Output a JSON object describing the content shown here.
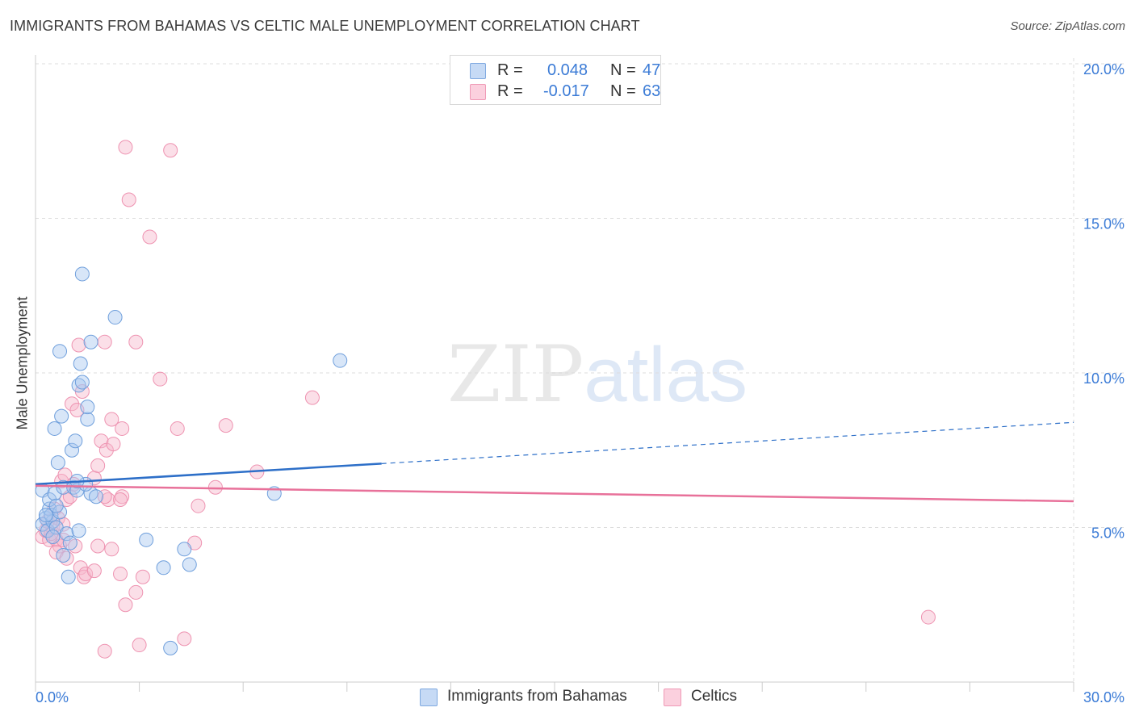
{
  "title": "IMMIGRANTS FROM BAHAMAS VS CELTIC MALE UNEMPLOYMENT CORRELATION CHART",
  "source": "Source: ZipAtlas.com",
  "watermark": {
    "zip": "ZIP",
    "atlas": "atlas"
  },
  "legend_top": {
    "blue": {
      "r_label": "R =",
      "r_value": "0.048",
      "n_label": "N =",
      "n_value": "47"
    },
    "pink": {
      "r_label": "R =",
      "r_value": "-0.017",
      "n_label": "N =",
      "n_value": "63"
    }
  },
  "colors": {
    "blue_fill": "#a9c8f0",
    "blue_stroke": "#6f9fdc",
    "blue_line": "#2d6fc8",
    "pink_fill": "#f6b9cd",
    "pink_stroke": "#ee93b1",
    "pink_line": "#e8719a",
    "grid": "#dddddd",
    "axis_text": "#3b7bd6"
  },
  "chart_data": {
    "type": "scatter",
    "title": "IMMIGRANTS FROM BAHAMAS VS CELTIC MALE UNEMPLOYMENT CORRELATION CHART",
    "xlabel": "",
    "ylabel": "Male Unemployment",
    "xlim": [
      0,
      30
    ],
    "ylim": [
      0,
      20
    ],
    "x_tick_labels": [
      {
        "value": 0,
        "label": "0.0%"
      },
      {
        "value": 30,
        "label": "30.0%"
      }
    ],
    "y_tick_labels": [
      {
        "value": 5,
        "label": "5.0%"
      },
      {
        "value": 10,
        "label": "10.0%"
      },
      {
        "value": 15,
        "label": "15.0%"
      },
      {
        "value": 20,
        "label": "20.0%"
      }
    ],
    "legend": [
      "Immigrants from Bahamas",
      "Celtics"
    ],
    "series": [
      {
        "name": "Immigrants from Bahamas",
        "color": "blue",
        "points": [
          [
            0.2,
            6.2
          ],
          [
            0.3,
            5.3
          ],
          [
            0.2,
            5.1
          ],
          [
            0.4,
            5.6
          ],
          [
            0.35,
            4.9
          ],
          [
            0.5,
            5.2
          ],
          [
            0.45,
            5.4
          ],
          [
            0.6,
            5.0
          ],
          [
            0.7,
            5.5
          ],
          [
            0.4,
            5.9
          ],
          [
            0.55,
            6.1
          ],
          [
            0.6,
            5.7
          ],
          [
            0.8,
            6.3
          ],
          [
            0.9,
            4.8
          ],
          [
            1.0,
            4.5
          ],
          [
            0.8,
            4.1
          ],
          [
            1.1,
            6.3
          ],
          [
            1.2,
            6.2
          ],
          [
            1.25,
            4.9
          ],
          [
            1.05,
            7.5
          ],
          [
            1.15,
            7.8
          ],
          [
            0.75,
            8.6
          ],
          [
            0.65,
            7.1
          ],
          [
            0.55,
            8.2
          ],
          [
            1.25,
            9.6
          ],
          [
            1.35,
            9.7
          ],
          [
            1.5,
            8.5
          ],
          [
            1.5,
            8.9
          ],
          [
            1.3,
            10.3
          ],
          [
            0.7,
            10.7
          ],
          [
            1.6,
            11.0
          ],
          [
            2.3,
            11.8
          ],
          [
            1.35,
            13.2
          ],
          [
            1.6,
            6.1
          ],
          [
            1.75,
            6.0
          ],
          [
            1.45,
            6.4
          ],
          [
            1.2,
            6.5
          ],
          [
            0.95,
            3.4
          ],
          [
            3.2,
            4.6
          ],
          [
            3.7,
            3.7
          ],
          [
            4.3,
            4.3
          ],
          [
            4.45,
            3.8
          ],
          [
            3.9,
            1.1
          ],
          [
            6.9,
            6.1
          ],
          [
            8.8,
            10.4
          ],
          [
            0.3,
            5.4
          ],
          [
            0.5,
            4.7
          ]
        ],
        "trend": {
          "x0": 0,
          "y0": 6.4,
          "x1": 30,
          "y1": 8.4,
          "solid_until": 10
        }
      },
      {
        "name": "Celtics",
        "color": "pink",
        "points": [
          [
            0.2,
            4.7
          ],
          [
            0.3,
            4.9
          ],
          [
            0.4,
            4.6
          ],
          [
            0.5,
            5.0
          ],
          [
            0.6,
            4.6
          ],
          [
            0.7,
            4.4
          ],
          [
            0.35,
            5.2
          ],
          [
            0.45,
            4.8
          ],
          [
            0.55,
            5.6
          ],
          [
            0.65,
            5.3
          ],
          [
            0.8,
            5.1
          ],
          [
            0.9,
            5.9
          ],
          [
            1.0,
            6.0
          ],
          [
            0.75,
            6.5
          ],
          [
            0.85,
            6.7
          ],
          [
            1.1,
            6.4
          ],
          [
            0.6,
            4.2
          ],
          [
            0.9,
            4.0
          ],
          [
            1.15,
            4.4
          ],
          [
            0.8,
            4.6
          ],
          [
            1.3,
            3.7
          ],
          [
            1.4,
            3.4
          ],
          [
            1.45,
            3.5
          ],
          [
            1.7,
            3.6
          ],
          [
            1.8,
            4.4
          ],
          [
            2.2,
            4.3
          ],
          [
            1.7,
            6.6
          ],
          [
            2.1,
            5.9
          ],
          [
            2.0,
            6.0
          ],
          [
            2.5,
            6.0
          ],
          [
            2.45,
            5.9
          ],
          [
            1.8,
            7.0
          ],
          [
            1.9,
            7.8
          ],
          [
            2.05,
            7.5
          ],
          [
            2.25,
            7.7
          ],
          [
            1.05,
            9.0
          ],
          [
            1.35,
            9.4
          ],
          [
            1.2,
            8.8
          ],
          [
            2.2,
            8.5
          ],
          [
            2.5,
            8.2
          ],
          [
            2.9,
            11.0
          ],
          [
            1.25,
            10.9
          ],
          [
            2.0,
            11.0
          ],
          [
            3.6,
            9.8
          ],
          [
            4.1,
            8.2
          ],
          [
            5.5,
            8.3
          ],
          [
            6.4,
            6.8
          ],
          [
            8.0,
            9.2
          ],
          [
            4.7,
            5.7
          ],
          [
            5.2,
            6.3
          ],
          [
            4.6,
            4.5
          ],
          [
            2.45,
            3.5
          ],
          [
            2.6,
            2.5
          ],
          [
            2.9,
            2.9
          ],
          [
            3.1,
            3.4
          ],
          [
            3.0,
            1.2
          ],
          [
            4.3,
            1.4
          ],
          [
            2.0,
            1.0
          ],
          [
            2.6,
            17.3
          ],
          [
            3.9,
            17.2
          ],
          [
            2.7,
            15.6
          ],
          [
            3.3,
            14.4
          ],
          [
            25.8,
            2.1
          ]
        ],
        "trend": {
          "x0": 0,
          "y0": 6.35,
          "x1": 30,
          "y1": 5.85
        }
      }
    ]
  }
}
